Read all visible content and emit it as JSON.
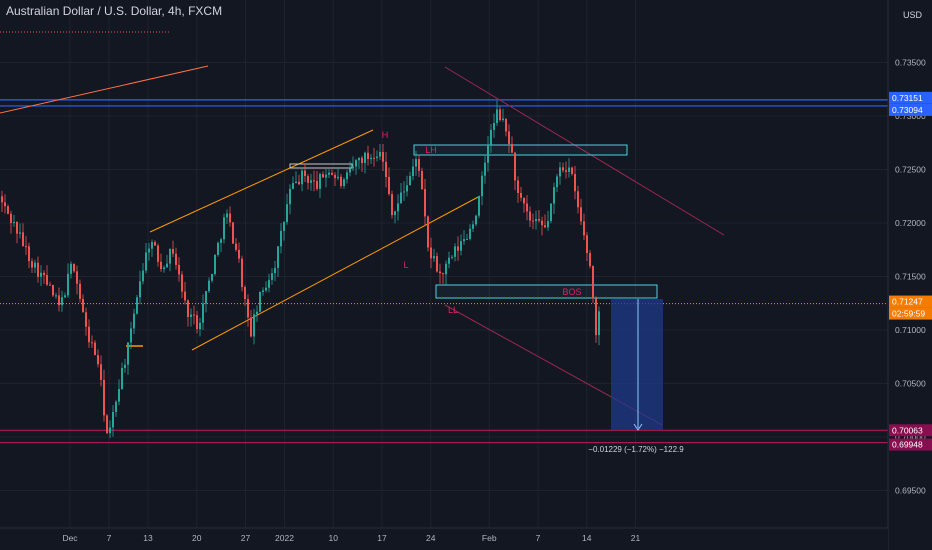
{
  "header": {
    "title": "Australian Dollar / U.S. Dollar, 4h, FXCM",
    "currency": "USD"
  },
  "chart_data": {
    "type": "candlestick",
    "symbol": "Australian Dollar / U.S. Dollar",
    "interval": "4h",
    "broker": "FXCM",
    "ylim": [
      0.6925,
      0.7395
    ],
    "y_ticks": [
      "0.69500",
      "0.70000",
      "0.70500",
      "0.71000",
      "0.71500",
      "0.72000",
      "0.72500",
      "0.73000",
      "0.73500"
    ],
    "x_ticks": [
      {
        "label": "Dec",
        "idx": 0
      },
      {
        "label": "7",
        "idx": 4
      },
      {
        "label": "13",
        "idx": 8
      },
      {
        "label": "20",
        "idx": 13
      },
      {
        "label": "27",
        "idx": 18
      },
      {
        "label": "2022",
        "idx": 22
      },
      {
        "label": "10",
        "idx": 27
      },
      {
        "label": "17",
        "idx": 32
      },
      {
        "label": "24",
        "idx": 37
      },
      {
        "label": "Feb",
        "idx": 43
      },
      {
        "label": "7",
        "idx": 48
      },
      {
        "label": "14",
        "idx": 53
      },
      {
        "label": "21",
        "idx": 58
      }
    ],
    "price_labels": {
      "upper_1": "0.73151",
      "upper_2": "0.73094",
      "current": "0.71247",
      "countdown": "02:59:59",
      "lower_1": "0.70063",
      "lower_2": "0.69948"
    },
    "annotations": {
      "h": "H",
      "lh": "LH",
      "l": "L",
      "ll": "LL",
      "bos": "BOS",
      "measure": "−0.01229 (−1.72%) −122.9"
    },
    "colors": {
      "up": "#26a69a",
      "down": "#ef5350",
      "blue_line": "#2962ff",
      "magenta_line": "#c2185b",
      "channel": "#ff9800",
      "box": "#4dd0e1",
      "projection": "#1e3a8a",
      "label_h": "#e91e63"
    }
  }
}
